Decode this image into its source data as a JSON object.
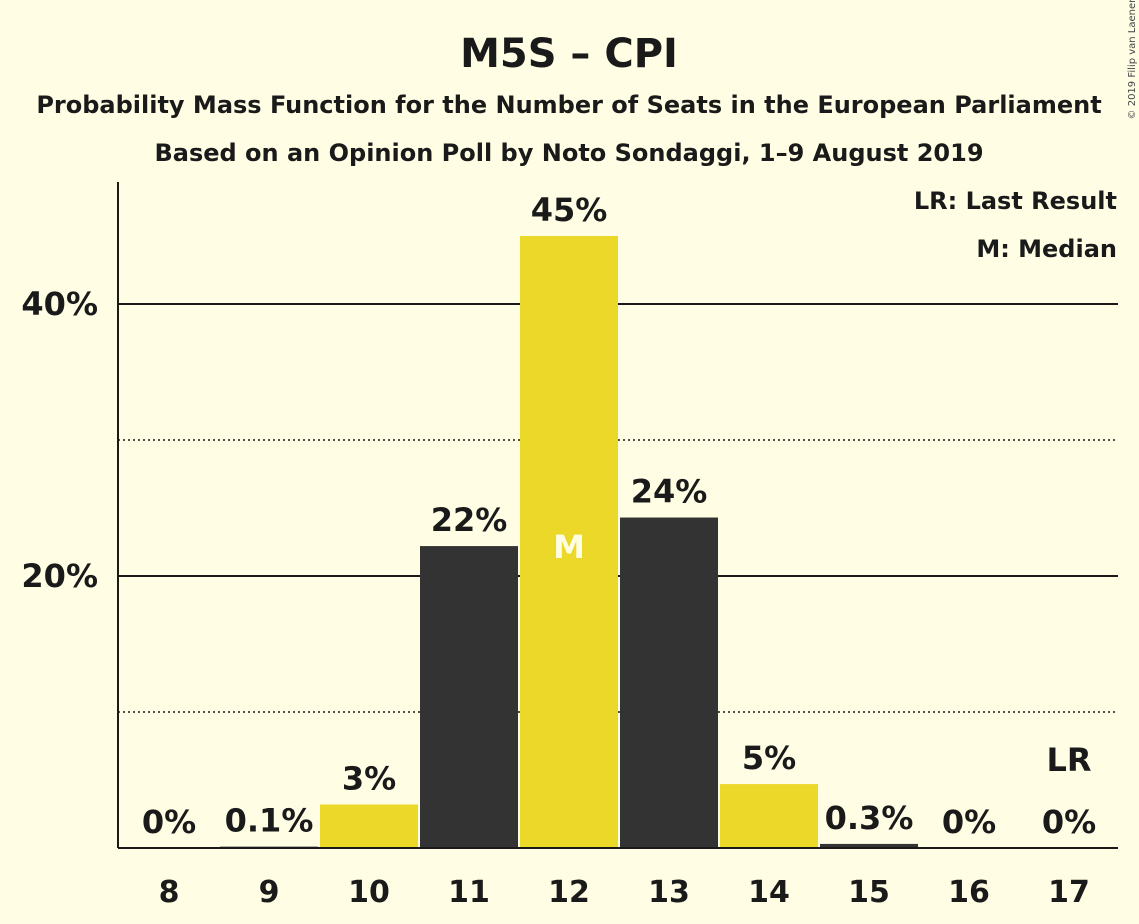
{
  "title": "M5S – CPI",
  "subtitle1": "Probability Mass Function for the Number of Seats in the European Parliament",
  "subtitle2": "Based on an Opinion Poll by Noto Sondaggi, 1–9 August 2019",
  "copyright": "© 2019 Filip van Laenen",
  "legend": {
    "last_result": "LR: Last Result",
    "median": "M: Median"
  },
  "colors": {
    "yellow": "#ECD829",
    "dark": "#333333",
    "background": "#FFFEE5"
  },
  "chart_data": {
    "type": "bar",
    "categories": [
      "8",
      "9",
      "10",
      "11",
      "12",
      "13",
      "14",
      "15",
      "16",
      "17"
    ],
    "values": [
      0,
      0.1,
      3.2,
      22.2,
      45.0,
      24.3,
      4.7,
      0.3,
      0,
      0
    ],
    "value_labels": [
      "0%",
      "0.1%",
      "3%",
      "22%",
      "45%",
      "24%",
      "5%",
      "0.3%",
      "0%",
      "0%"
    ],
    "bar_colors": [
      "yellow",
      "dark",
      "yellow",
      "dark",
      "yellow",
      "dark",
      "yellow",
      "dark",
      "yellow",
      "dark"
    ],
    "ylim": [
      0,
      49
    ],
    "yticks": [
      {
        "value": 20,
        "label": "20%"
      },
      {
        "value": 40,
        "label": "40%"
      }
    ],
    "minor_gridlines": [
      10,
      30
    ],
    "median_category": "12",
    "median_label": "M",
    "last_result_category": "17",
    "last_result_label": "LR",
    "xlabel": "",
    "ylabel": ""
  }
}
